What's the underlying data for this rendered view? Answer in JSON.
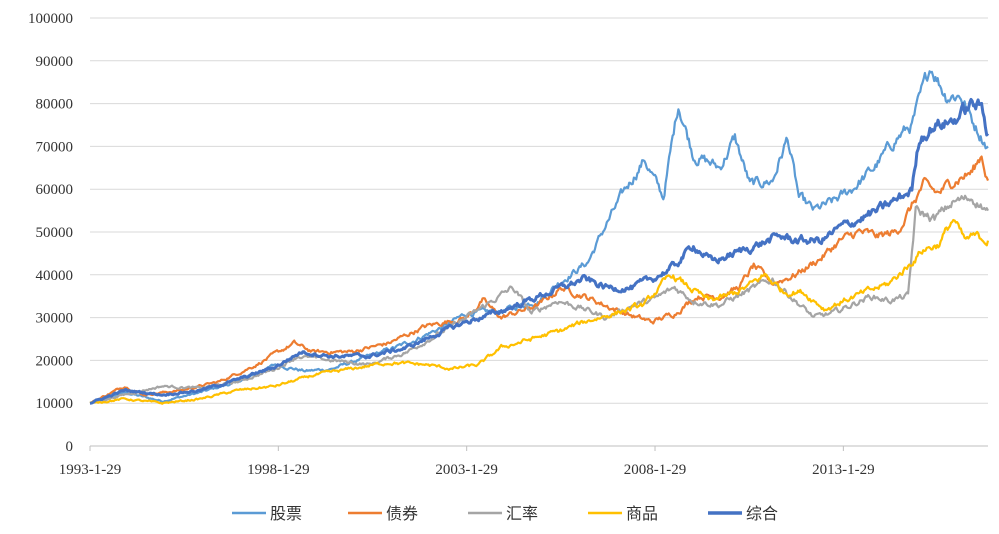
{
  "chart_data": {
    "type": "line",
    "title": "",
    "xlabel": "",
    "ylabel": "",
    "ylim": [
      0,
      100000
    ],
    "yticks": [
      0,
      10000,
      20000,
      30000,
      40000,
      50000,
      60000,
      70000,
      80000,
      90000,
      100000
    ],
    "ytick_labels": [
      "0",
      "10000",
      "20000",
      "30000",
      "40000",
      "50000",
      "60000",
      "70000",
      "80000",
      "90000",
      "100000"
    ],
    "xlim": [
      1993.08,
      2016.92
    ],
    "xticks": [
      1993.08,
      1998.08,
      2003.08,
      2008.08,
      2013.08
    ],
    "xtick_labels": [
      "1993-1-29",
      "1998-1-29",
      "2003-1-29",
      "2008-1-29",
      "2013-1-29"
    ],
    "grid": true,
    "legend_position": "bottom",
    "series": [
      {
        "name": "股票",
        "color": "#5b9bd5",
        "points": [
          [
            1993.08,
            10000
          ],
          [
            1994.0,
            12500
          ],
          [
            1995.0,
            10500
          ],
          [
            1996.0,
            12500
          ],
          [
            1997.0,
            15000
          ],
          [
            1998.0,
            19000
          ],
          [
            1998.8,
            17500
          ],
          [
            1999.5,
            18000
          ],
          [
            2000.5,
            21000
          ],
          [
            2001.5,
            24000
          ],
          [
            2002.5,
            28000
          ],
          [
            2003.08,
            31000
          ],
          [
            2004.0,
            31500
          ],
          [
            2005.0,
            34000
          ],
          [
            2005.5,
            38000
          ],
          [
            2006.3,
            43000
          ],
          [
            2006.8,
            52000
          ],
          [
            2007.3,
            60000
          ],
          [
            2007.8,
            67000
          ],
          [
            2008.3,
            58000
          ],
          [
            2008.7,
            80000
          ],
          [
            2009.1,
            68000
          ],
          [
            2009.8,
            65000
          ],
          [
            2010.2,
            72000
          ],
          [
            2010.6,
            61000
          ],
          [
            2011.2,
            62000
          ],
          [
            2011.6,
            72000
          ],
          [
            2011.9,
            58000
          ],
          [
            2012.3,
            55000
          ],
          [
            2012.8,
            57000
          ],
          [
            2013.3,
            60000
          ],
          [
            2013.9,
            65000
          ],
          [
            2014.5,
            72000
          ],
          [
            2014.9,
            75000
          ],
          [
            2015.4,
            89000
          ],
          [
            2015.8,
            82000
          ],
          [
            2016.2,
            82000
          ],
          [
            2016.5,
            76000
          ],
          [
            2016.92,
            70000
          ]
        ]
      },
      {
        "name": "债券",
        "color": "#ed7d31",
        "points": [
          [
            1993.08,
            10000
          ],
          [
            1994.0,
            14000
          ],
          [
            1994.5,
            12000
          ],
          [
            1995.5,
            13000
          ],
          [
            1996.5,
            15000
          ],
          [
            1997.5,
            19000
          ],
          [
            1998.5,
            24000
          ],
          [
            1999.0,
            22000
          ],
          [
            2000.0,
            22000
          ],
          [
            2001.0,
            24000
          ],
          [
            2002.0,
            28000
          ],
          [
            2003.08,
            30000
          ],
          [
            2003.5,
            34000
          ],
          [
            2004.0,
            30000
          ],
          [
            2005.0,
            33000
          ],
          [
            2005.6,
            37000
          ],
          [
            2006.2,
            35000
          ],
          [
            2007.0,
            32000
          ],
          [
            2007.6,
            30000
          ],
          [
            2008.0,
            29000
          ],
          [
            2008.6,
            31000
          ],
          [
            2009.2,
            35000
          ],
          [
            2009.8,
            35000
          ],
          [
            2010.3,
            37000
          ],
          [
            2010.7,
            42000
          ],
          [
            2011.2,
            38000
          ],
          [
            2011.8,
            40000
          ],
          [
            2012.5,
            44000
          ],
          [
            2013.0,
            48000
          ],
          [
            2013.5,
            50000
          ],
          [
            2014.0,
            49000
          ],
          [
            2014.5,
            50000
          ],
          [
            2014.9,
            56000
          ],
          [
            2015.2,
            61000
          ],
          [
            2015.6,
            59000
          ],
          [
            2016.0,
            62000
          ],
          [
            2016.5,
            64000
          ],
          [
            2016.75,
            68000
          ],
          [
            2016.92,
            62000
          ]
        ]
      },
      {
        "name": "汇率",
        "color": "#a5a5a5",
        "points": [
          [
            1993.08,
            10000
          ],
          [
            1994.0,
            12000
          ],
          [
            1995.0,
            14000
          ],
          [
            1996.0,
            13500
          ],
          [
            1997.0,
            15000
          ],
          [
            1998.0,
            18000
          ],
          [
            1998.6,
            21000
          ],
          [
            1999.5,
            20000
          ],
          [
            2000.5,
            19000
          ],
          [
            2001.5,
            22000
          ],
          [
            2002.5,
            27000
          ],
          [
            2003.08,
            30000
          ],
          [
            2003.6,
            33000
          ],
          [
            2004.3,
            37000
          ],
          [
            2004.8,
            31000
          ],
          [
            2005.5,
            34000
          ],
          [
            2006.2,
            32000
          ],
          [
            2006.8,
            30000
          ],
          [
            2007.5,
            33000
          ],
          [
            2008.0,
            34000
          ],
          [
            2008.6,
            37000
          ],
          [
            2009.1,
            34000
          ],
          [
            2009.8,
            33000
          ],
          [
            2010.5,
            36000
          ],
          [
            2011.2,
            39000
          ],
          [
            2011.8,
            34000
          ],
          [
            2012.3,
            30000
          ],
          [
            2012.8,
            31000
          ],
          [
            2013.3,
            33000
          ],
          [
            2013.8,
            35000
          ],
          [
            2014.3,
            34000
          ],
          [
            2014.8,
            35000
          ],
          [
            2015.0,
            55000
          ],
          [
            2015.5,
            53000
          ],
          [
            2016.0,
            57000
          ],
          [
            2016.5,
            58000
          ],
          [
            2016.92,
            55000
          ]
        ]
      },
      {
        "name": "商品",
        "color": "#ffc000",
        "points": [
          [
            1993.08,
            10000
          ],
          [
            1994.0,
            11000
          ],
          [
            1995.0,
            10000
          ],
          [
            1996.0,
            11000
          ],
          [
            1997.0,
            13000
          ],
          [
            1998.0,
            14000
          ],
          [
            1999.0,
            16500
          ],
          [
            2000.0,
            18000
          ],
          [
            2001.0,
            19500
          ],
          [
            2002.0,
            19000
          ],
          [
            2002.7,
            18000
          ],
          [
            2003.4,
            19000
          ],
          [
            2004.0,
            23000
          ],
          [
            2004.8,
            25000
          ],
          [
            2005.6,
            27000
          ],
          [
            2006.2,
            29000
          ],
          [
            2007.0,
            31000
          ],
          [
            2007.8,
            33000
          ],
          [
            2008.1,
            36000
          ],
          [
            2008.5,
            40000
          ],
          [
            2009.0,
            37000
          ],
          [
            2009.5,
            34000
          ],
          [
            2010.0,
            35000
          ],
          [
            2010.5,
            37000
          ],
          [
            2011.0,
            40000
          ],
          [
            2011.5,
            36000
          ],
          [
            2012.0,
            36000
          ],
          [
            2012.6,
            32000
          ],
          [
            2013.1,
            34000
          ],
          [
            2013.7,
            36000
          ],
          [
            2014.3,
            38000
          ],
          [
            2014.8,
            42000
          ],
          [
            2015.2,
            46000
          ],
          [
            2015.6,
            47000
          ],
          [
            2016.0,
            53000
          ],
          [
            2016.3,
            48000
          ],
          [
            2016.6,
            49000
          ],
          [
            2016.92,
            48000
          ]
        ]
      },
      {
        "name": "综合",
        "color": "#4472c4",
        "points": [
          [
            1993.08,
            10000
          ],
          [
            1994.0,
            13000
          ],
          [
            1995.0,
            12000
          ],
          [
            1996.0,
            13000
          ],
          [
            1997.0,
            15500
          ],
          [
            1998.0,
            18500
          ],
          [
            1998.7,
            22000
          ],
          [
            1999.5,
            21000
          ],
          [
            2000.5,
            21000
          ],
          [
            2001.5,
            23000
          ],
          [
            2002.5,
            27000
          ],
          [
            2003.08,
            29000
          ],
          [
            2004.0,
            31500
          ],
          [
            2005.0,
            35000
          ],
          [
            2005.6,
            37000
          ],
          [
            2006.2,
            39000
          ],
          [
            2006.8,
            37000
          ],
          [
            2007.5,
            37000
          ],
          [
            2008.0,
            39000
          ],
          [
            2008.6,
            42000
          ],
          [
            2009.1,
            47000
          ],
          [
            2009.6,
            43000
          ],
          [
            2010.2,
            45000
          ],
          [
            2010.8,
            47000
          ],
          [
            2011.4,
            49000
          ],
          [
            2011.9,
            48000
          ],
          [
            2012.5,
            48000
          ],
          [
            2013.0,
            51000
          ],
          [
            2013.5,
            53000
          ],
          [
            2014.0,
            55000
          ],
          [
            2014.6,
            58000
          ],
          [
            2014.9,
            60000
          ],
          [
            2015.1,
            72000
          ],
          [
            2015.5,
            75000
          ],
          [
            2016.0,
            76000
          ],
          [
            2016.5,
            80000
          ],
          [
            2016.75,
            79000
          ],
          [
            2016.92,
            73000
          ]
        ]
      }
    ]
  }
}
